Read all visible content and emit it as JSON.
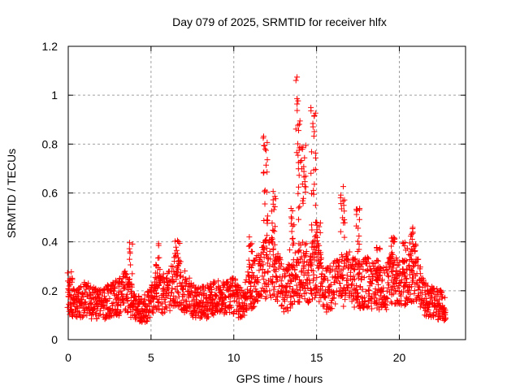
{
  "chart_data": {
    "type": "scatter",
    "title": "Day 079 of 2025, SRMTID for receiver hlfx",
    "xlabel": "GPS time / hours",
    "ylabel": "SRMTID / TECUs",
    "xlim": [
      0,
      24
    ],
    "ylim": [
      0,
      1.2
    ],
    "xticks": [
      0,
      5,
      10,
      15,
      20
    ],
    "xtick_labels": [
      "0",
      "5",
      "10",
      "15",
      "20"
    ],
    "yticks": [
      0,
      0.2,
      0.4,
      0.6,
      0.8,
      1,
      1.2
    ],
    "ytick_labels": [
      "0",
      "0.2",
      "0.4",
      "0.6",
      "0.8",
      "1",
      "1.2"
    ],
    "grid": true,
    "marker": "plus",
    "series": [
      {
        "name": "SRMTID",
        "color": "#ff0000",
        "trend": [
          [
            0.0,
            0.18
          ],
          [
            0.5,
            0.15
          ],
          [
            1.0,
            0.17
          ],
          [
            1.5,
            0.15
          ],
          [
            2.0,
            0.14
          ],
          [
            2.5,
            0.16
          ],
          [
            3.0,
            0.17
          ],
          [
            3.5,
            0.2
          ],
          [
            4.0,
            0.13
          ],
          [
            4.5,
            0.12
          ],
          [
            5.0,
            0.15
          ],
          [
            5.5,
            0.2
          ],
          [
            6.0,
            0.19
          ],
          [
            6.5,
            0.25
          ],
          [
            7.0,
            0.2
          ],
          [
            7.5,
            0.16
          ],
          [
            8.0,
            0.15
          ],
          [
            8.5,
            0.16
          ],
          [
            9.0,
            0.17
          ],
          [
            9.5,
            0.17
          ],
          [
            10.0,
            0.18
          ],
          [
            10.5,
            0.14
          ],
          [
            11.0,
            0.22
          ],
          [
            11.5,
            0.25
          ],
          [
            12.0,
            0.3
          ],
          [
            12.5,
            0.28
          ],
          [
            13.0,
            0.2
          ],
          [
            13.5,
            0.22
          ],
          [
            14.0,
            0.28
          ],
          [
            14.5,
            0.27
          ],
          [
            15.0,
            0.3
          ],
          [
            15.5,
            0.2
          ],
          [
            16.0,
            0.22
          ],
          [
            16.5,
            0.24
          ],
          [
            17.0,
            0.25
          ],
          [
            17.5,
            0.22
          ],
          [
            18.0,
            0.24
          ],
          [
            18.5,
            0.22
          ],
          [
            19.0,
            0.2
          ],
          [
            19.5,
            0.25
          ],
          [
            20.0,
            0.22
          ],
          [
            20.5,
            0.26
          ],
          [
            21.0,
            0.28
          ],
          [
            21.5,
            0.18
          ],
          [
            22.0,
            0.15
          ],
          [
            22.5,
            0.14
          ],
          [
            22.8,
            0.12
          ]
        ],
        "spikes": [
          [
            0.1,
            0.32
          ],
          [
            3.8,
            0.4
          ],
          [
            5.4,
            0.4
          ],
          [
            6.6,
            0.42
          ],
          [
            11.0,
            0.42
          ],
          [
            11.9,
            0.87
          ],
          [
            12.4,
            0.62
          ],
          [
            13.5,
            0.55
          ],
          [
            13.9,
            1.1
          ],
          [
            14.2,
            0.8
          ],
          [
            14.8,
            1.0
          ],
          [
            15.1,
            0.52
          ],
          [
            16.6,
            0.63
          ],
          [
            17.5,
            0.54
          ],
          [
            18.7,
            0.4
          ],
          [
            19.6,
            0.42
          ],
          [
            20.3,
            0.42
          ],
          [
            20.7,
            0.46
          ]
        ]
      }
    ]
  }
}
